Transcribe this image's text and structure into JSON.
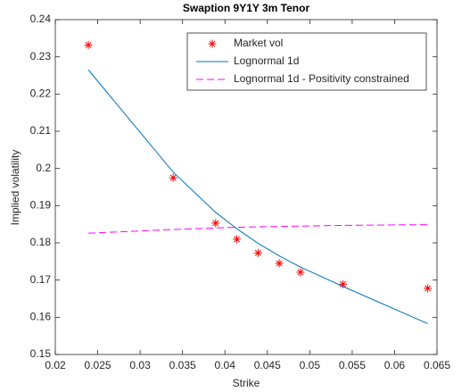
{
  "chart_data": {
    "type": "line",
    "title": "Swaption 9Y1Y 3m Tenor",
    "x_label": "Strike",
    "y_label": "Implied volatility",
    "x": [
      0.0239,
      0.0339,
      0.0389,
      0.0414,
      0.0439,
      0.0464,
      0.0489,
      0.0539,
      0.0639
    ],
    "series": [
      {
        "name": "Market vol",
        "color": "#ff0000",
        "marker": "*",
        "line": "none",
        "values": [
          0.2332,
          0.1975,
          0.1853,
          0.181,
          0.1773,
          0.1745,
          0.1721,
          0.1689,
          0.1678
        ]
      },
      {
        "name": "Lognormal 1d",
        "color": "#0072bd",
        "marker": "none",
        "line": "solid",
        "values": [
          0.2265,
          0.199,
          0.1882,
          0.1838,
          0.1799,
          0.1765,
          0.1735,
          0.1683,
          0.1583
        ]
      },
      {
        "name": "Lognormal 1d - Positivity constrained",
        "color": "#ff00ff",
        "marker": "none",
        "line": "dash",
        "values": [
          0.1826,
          0.1836,
          0.184,
          0.1842,
          0.1843,
          0.1844,
          0.1845,
          0.1847,
          0.1849
        ]
      }
    ],
    "xlim": [
      0.02,
      0.065
    ],
    "xticks": [
      0.02,
      0.025,
      0.03,
      0.035,
      0.04,
      0.045,
      0.05,
      0.055,
      0.06,
      0.065
    ],
    "ylim": [
      0.15,
      0.24
    ],
    "yticks": [
      0.15,
      0.16,
      0.17,
      0.18,
      0.19,
      0.2,
      0.21,
      0.22,
      0.23,
      0.24
    ],
    "legend": "northeast",
    "grid": false
  }
}
